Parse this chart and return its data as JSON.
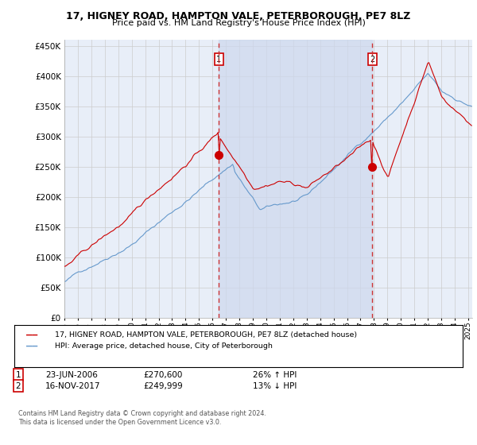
{
  "title1": "17, HIGNEY ROAD, HAMPTON VALE, PETERBOROUGH, PE7 8LZ",
  "title2": "Price paid vs. HM Land Registry's House Price Index (HPI)",
  "legend1": "17, HIGNEY ROAD, HAMPTON VALE, PETERBOROUGH, PE7 8LZ (detached house)",
  "legend2": "HPI: Average price, detached house, City of Peterborough",
  "footer": "Contains HM Land Registry data © Crown copyright and database right 2024.\nThis data is licensed under the Open Government Licence v3.0.",
  "sale1_date": "23-JUN-2006",
  "sale1_price": 270600,
  "sale1_pct": "26% ↑ HPI",
  "sale1_year": 2006.47,
  "sale2_date": "16-NOV-2017",
  "sale2_price": 249999,
  "sale2_pct": "13% ↓ HPI",
  "sale2_year": 2017.87,
  "xlim_left": 1995.0,
  "xlim_right": 2025.3,
  "ylim": [
    0,
    460000
  ],
  "yticks": [
    0,
    50000,
    100000,
    150000,
    200000,
    250000,
    300000,
    350000,
    400000,
    450000
  ],
  "plot_bg": "#e8eef8",
  "shade_color": "#cdd8ee",
  "red_color": "#cc0000",
  "blue_color": "#6699cc",
  "vline_color": "#cc3333",
  "box_color": "#cc0000",
  "grid_color": "#cccccc",
  "white": "#ffffff"
}
